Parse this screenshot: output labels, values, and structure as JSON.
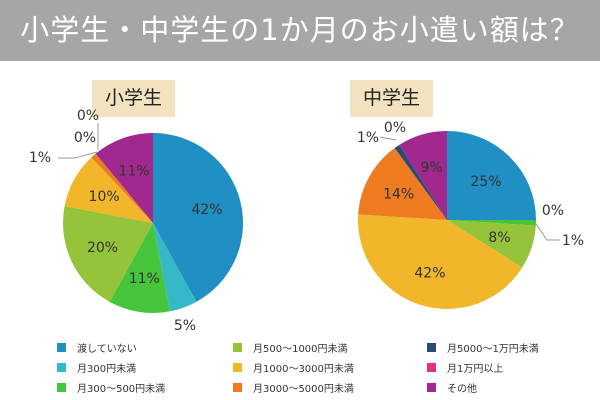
{
  "title": "小学生・中学生の1か月のお小遣い額は？",
  "chart_data": [
    {
      "type": "pie",
      "title": "小学生",
      "categories": [
        "渡していない",
        "月300円未満",
        "月300～500円未満",
        "月500～1000円未満",
        "月1000～3000円未満",
        "月3000～5000円未満",
        "月5000～1万円未満",
        "月1万円以上",
        "その他"
      ],
      "values": [
        42,
        5,
        11,
        20,
        10,
        1,
        0,
        0,
        11
      ],
      "labels": [
        "42%",
        "5%",
        "11%",
        "20%",
        "10%",
        "1%",
        "0%",
        "0%",
        "11%"
      ]
    },
    {
      "type": "pie",
      "title": "中学生",
      "categories": [
        "渡していない",
        "月300円未満",
        "月300～500円未満",
        "月500～1000円未満",
        "月1000～3000円未満",
        "月3000～5000円未満",
        "月5000～1万円未満",
        "月1万円以上",
        "その他"
      ],
      "values": [
        25,
        0,
        1,
        8,
        42,
        14,
        1,
        0,
        9
      ],
      "labels": [
        "25%",
        "0%",
        "1%",
        "8%",
        "42%",
        "14%",
        "1%",
        "0%",
        "9%"
      ]
    }
  ],
  "legend": {
    "placement": "bottom",
    "items": [
      "渡していない",
      "月300円未満",
      "月300～500円未満",
      "月500～1000円未満",
      "月1000～3000円未満",
      "月3000～5000円未満",
      "月5000～1万円未満",
      "月1万円以上",
      "その他"
    ]
  },
  "colors": [
    "#1f8fc4",
    "#35b9c8",
    "#46c53c",
    "#95c43a",
    "#f2b62b",
    "#ee7b22",
    "#2c4a78",
    "#e6317a",
    "#a0288e"
  ]
}
